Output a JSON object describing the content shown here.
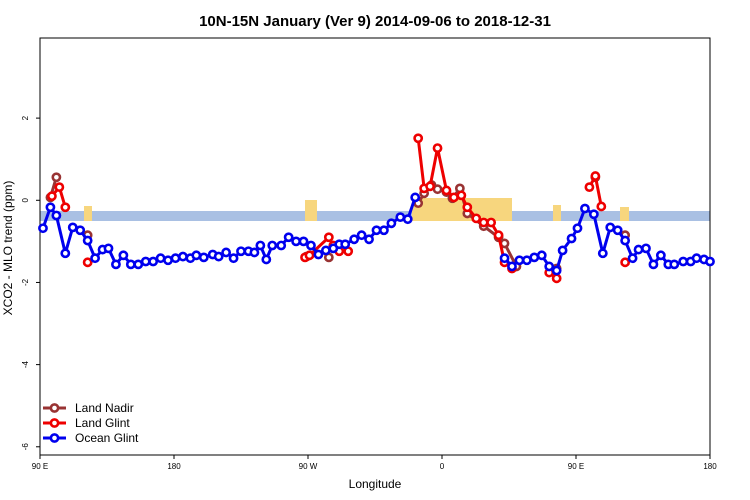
{
  "chart_data": {
    "type": "line",
    "title": "10N-15N January (Ver 9)   2014-09-06 to 2018-12-31",
    "x_label": "Longitude",
    "y_label": "XCO2 - MLO trend (ppm)",
    "xlim": [
      90,
      540
    ],
    "ylim": [
      -6.2,
      3.95
    ],
    "xticks": [
      {
        "value": 90,
        "label": "90 E"
      },
      180,
      {
        "value": 270,
        "label": "90 W"
      },
      {
        "value": 360,
        "label": "0"
      },
      {
        "value": 450,
        "label": "90 E"
      },
      {
        "value": 540,
        "label": "180"
      }
    ],
    "yticks": [
      -6,
      -4,
      -2,
      0,
      2
    ],
    "series": [
      {
        "name": "Land Nadir",
        "color": "#993333",
        "x": [
          97,
          101,
          null,
          122,
          null,
          269,
          null,
          284,
          null,
          344,
          348,
          353,
          357,
          363,
          367,
          372,
          377,
          388,
          398,
          402,
          410,
          null,
          437,
          null,
          463,
          null,
          483
        ],
        "values": [
          0.07,
          0.56,
          null,
          -0.85,
          null,
          -1.37,
          null,
          -1.39,
          null,
          -0.07,
          0.17,
          0.37,
          0.27,
          0.2,
          0.05,
          0.29,
          -0.32,
          -0.63,
          -0.9,
          -1.05,
          -1.61,
          null,
          -1.66,
          null,
          0.56,
          null,
          -0.85
        ]
      },
      {
        "name": "Land Glint",
        "color": "#ee0000",
        "x": [
          98,
          103,
          107,
          null,
          122,
          null,
          268,
          271,
          284,
          287,
          291,
          297,
          null,
          344,
          348,
          352,
          357,
          363,
          368,
          373,
          377,
          383,
          388,
          393,
          398,
          402,
          407,
          null,
          432,
          437,
          null,
          459,
          463,
          467,
          null,
          483
        ],
        "values": [
          0.1,
          0.32,
          -0.17,
          null,
          -1.51,
          null,
          -1.39,
          -1.34,
          -0.9,
          -1.1,
          -1.24,
          -1.24,
          null,
          1.51,
          0.29,
          0.34,
          1.27,
          0.24,
          0.07,
          0.12,
          -0.17,
          -0.44,
          -0.54,
          -0.54,
          -0.85,
          -1.51,
          -1.66,
          null,
          -1.76,
          -1.9,
          null,
          0.32,
          0.59,
          -0.15,
          null,
          -1.51
        ]
      },
      {
        "name": "Ocean Glint",
        "color": "#0000ee",
        "x": [
          92,
          97,
          101,
          107,
          112,
          117,
          122,
          127,
          132,
          136,
          141,
          146,
          151,
          156,
          161,
          166,
          171,
          176,
          181,
          186,
          191,
          195,
          200,
          206,
          210,
          215,
          220,
          225,
          230,
          234,
          238,
          242,
          246,
          252,
          257,
          262,
          267,
          272,
          277,
          282,
          287,
          291,
          295,
          301,
          306,
          311,
          316,
          321,
          326,
          332,
          337,
          342,
          null,
          402,
          407,
          412,
          417,
          422,
          427,
          432,
          437,
          441,
          447,
          451,
          456,
          462,
          468,
          473,
          478,
          483,
          488,
          492,
          497,
          502,
          507,
          512,
          516,
          522,
          527,
          531,
          536,
          540
        ],
        "values": [
          -0.68,
          -0.17,
          -0.37,
          -1.29,
          -0.66,
          -0.73,
          -0.98,
          -1.41,
          -1.2,
          -1.17,
          -1.56,
          -1.34,
          -1.56,
          -1.56,
          -1.49,
          -1.49,
          -1.41,
          -1.46,
          -1.41,
          -1.37,
          -1.41,
          -1.34,
          -1.39,
          -1.32,
          -1.37,
          -1.27,
          -1.41,
          -1.24,
          -1.24,
          -1.27,
          -1.1,
          -1.44,
          -1.1,
          -1.1,
          -0.9,
          -1.0,
          -1.0,
          -1.1,
          -1.32,
          -1.22,
          -1.17,
          -1.07,
          -1.07,
          -0.95,
          -0.85,
          -0.95,
          -0.73,
          -0.73,
          -0.56,
          -0.41,
          -0.46,
          0.07,
          null,
          -1.41,
          -1.61,
          -1.46,
          -1.46,
          -1.39,
          -1.34,
          -1.61,
          -1.71,
          -1.22,
          -0.93,
          -0.68,
          -0.2,
          -0.34,
          -1.29,
          -0.66,
          -0.73,
          -0.98,
          -1.41,
          -1.2,
          -1.17,
          -1.56,
          -1.34,
          -1.56,
          -1.56,
          -1.49,
          -1.49,
          -1.41,
          -1.44,
          -1.49
        ]
      }
    ]
  }
}
